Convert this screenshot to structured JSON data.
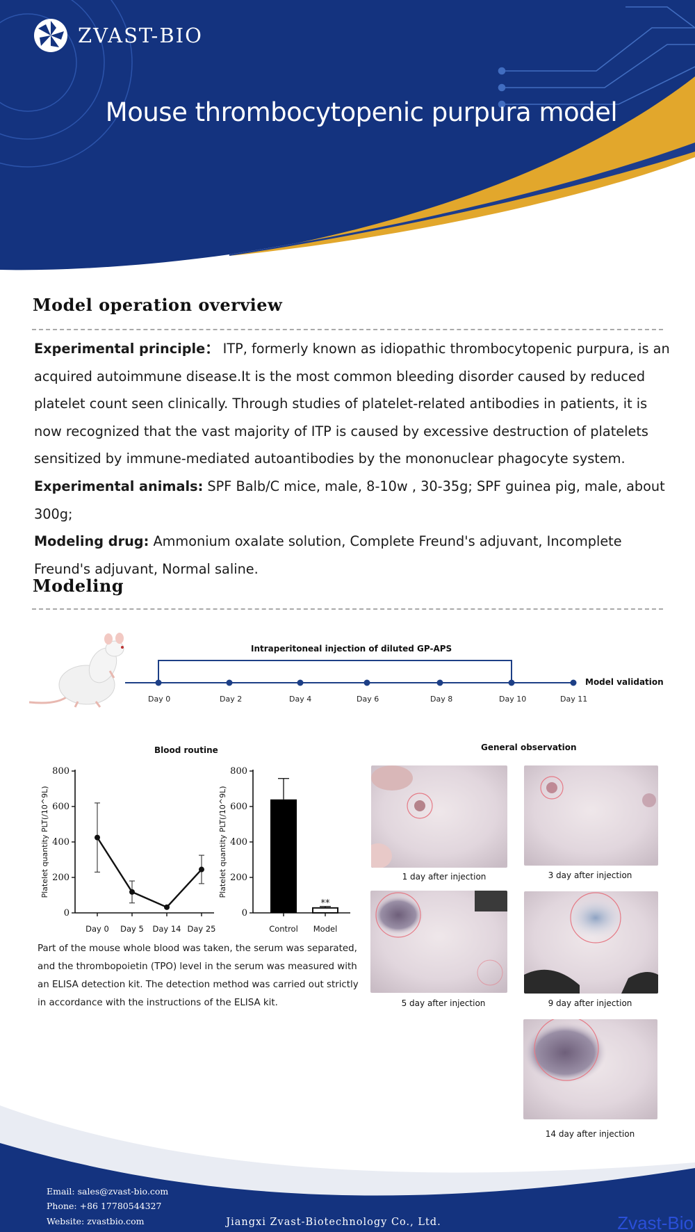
{
  "brand": {
    "name": "ZVAST-BIO"
  },
  "header": {
    "title": "Mouse thrombocytopenic purpura model"
  },
  "overview": {
    "title": "Model operation overview",
    "principle_label": "Experimental principle：",
    "principle_text": " ITP, formerly known as idiopathic thrombocytopenic purpura, is an acquired autoimmune disease.It is the most common bleeding disorder caused by reduced platelet count seen clinically. Through studies of platelet-related antibodies in patients, it is now recognized that the vast majority of ITP is caused by excessive destruction of platelets sensitized by immune-mediated autoantibodies by the mononuclear phagocyte system.",
    "animals_label": "Experimental animals:",
    "animals_text": "  SPF  Balb/C mice, male, 8-10w  ,  30-35g; SPF  guinea pig,  male,  about 300g;",
    "drug_label": "Modeling drug:",
    "drug_text": "  Ammonium oxalate solution,  Complete Freund's adjuvant,  Incomplete Freund's adjuvant,  Normal saline."
  },
  "modeling": {
    "title": "Modeling",
    "injection_label": "Intraperitoneal injection of diluted GP-APS",
    "validation_label": "Model validation",
    "days": [
      "Day 0",
      "Day 2",
      "Day 4",
      "Day 6",
      "Day 8",
      "Day 10",
      "Day 11"
    ]
  },
  "results": {
    "blood_title": "Blood routine",
    "observation_title": "General observation",
    "description": "Part of the mouse whole blood was taken, the serum was separated, and the thrombopoietin (TPO) level in the serum was measured with an ELISA detection kit. The detection method was carried out strictly in accordance with the instructions of the ELISA kit.",
    "photos": [
      {
        "caption": "1 day after injection"
      },
      {
        "caption": "3 day after injection"
      },
      {
        "caption": "5 day after injection"
      },
      {
        "caption": "9 day after injection"
      },
      {
        "caption": "14 day after injection"
      }
    ]
  },
  "chart_data": [
    {
      "type": "line",
      "x": [
        "Day 0",
        "Day 5",
        "Day 14",
        "Day 25"
      ],
      "values": [
        425,
        118,
        32,
        245
      ],
      "errors": [
        195,
        62,
        0,
        80
      ],
      "ylabel": "Platelet quantity PLT(/10^9L)",
      "yticks": [
        "0",
        "200",
        "400",
        "600",
        "800"
      ],
      "ylim": [
        0,
        800
      ],
      "color": "#111111"
    },
    {
      "type": "bar",
      "categories": [
        "Control",
        "Model"
      ],
      "values": [
        640,
        28
      ],
      "errors": [
        118,
        8
      ],
      "annotation": "**",
      "ylabel": "Platelet quantity PLT(/10^9L)",
      "yticks": [
        "0",
        "200",
        "400",
        "600",
        "800"
      ],
      "ylim": [
        0,
        800
      ],
      "color": "#000000"
    }
  ],
  "footer": {
    "email": "Email: sales@zvast-bio.com",
    "phone": "Phone: +86 17780544327",
    "website": "Website: zvastbio.com",
    "company": "Jiangxi Zvast-Biotechnology Co., Ltd.",
    "watermark": "Zvast-Bio"
  },
  "colors": {
    "navy": "#14337f",
    "gold": "#e2a72c",
    "timeline": "#1d3f86"
  }
}
